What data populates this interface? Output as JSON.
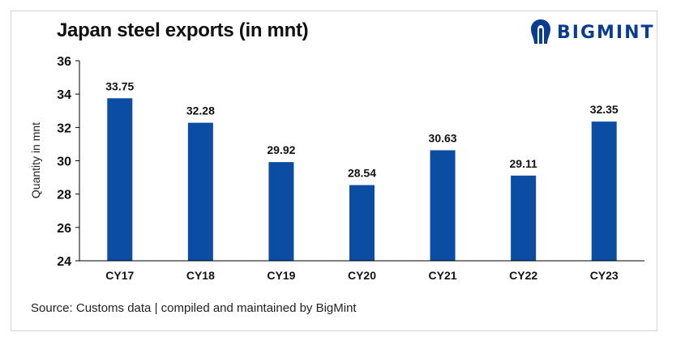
{
  "colors": {
    "bar": "#0b4da2",
    "logo": "#0a3d8f",
    "axis": "#000000"
  },
  "logo": {
    "text": "BIGMINT",
    "icon": "bigmint-logo-icon"
  },
  "source_note": "Source: Customs data | compiled and maintained by BigMint",
  "chart_data": {
    "type": "bar",
    "title": "Japan steel exports (in mnt)",
    "xlabel": "",
    "ylabel": "Quantity in mnt",
    "categories": [
      "CY17",
      "CY18",
      "CY19",
      "CY20",
      "CY21",
      "CY22",
      "CY23"
    ],
    "values": [
      33.75,
      32.28,
      29.92,
      28.54,
      30.63,
      29.11,
      32.35
    ],
    "value_labels": [
      "33.75",
      "32.28",
      "29.92",
      "28.54",
      "30.63",
      "29.11",
      "32.35"
    ],
    "ylim": [
      24,
      36
    ],
    "yticks": [
      24,
      26,
      28,
      30,
      32,
      34,
      36
    ],
    "grid": false,
    "legend": "none"
  }
}
